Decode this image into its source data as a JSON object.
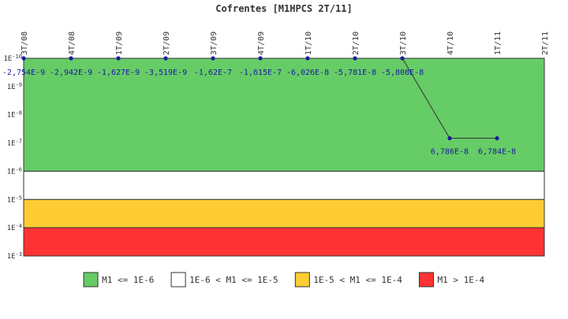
{
  "chart_data": {
    "type": "line",
    "title": "Cofrentes [M1HPCS 2T/11]",
    "categories": [
      "3T/08",
      "4T/08",
      "1T/09",
      "2T/09",
      "3T/09",
      "4T/09",
      "1T/10",
      "2T/10",
      "3T/10",
      "4T/10",
      "1T/11",
      "2T/11"
    ],
    "y_axis": {
      "scale": "log",
      "reversed": true,
      "range": [
        1e-10,
        0.001
      ],
      "ticks": [
        {
          "value": 1e-10,
          "mant": "1E",
          "exp": "-10"
        },
        {
          "value": 1e-09,
          "mant": "1E",
          "exp": "-9"
        },
        {
          "value": 1e-08,
          "mant": "1E",
          "exp": "-8"
        },
        {
          "value": 1e-07,
          "mant": "1E",
          "exp": "-7"
        },
        {
          "value": 1e-06,
          "mant": "1E",
          "exp": "-6"
        },
        {
          "value": 1e-05,
          "mant": "1E",
          "exp": "-5"
        },
        {
          "value": 0.0001,
          "mant": "1E",
          "exp": "-4"
        },
        {
          "value": 0.001,
          "mant": "1E",
          "exp": "-3"
        }
      ]
    },
    "bands": [
      {
        "from": 1e-10,
        "to": 1e-06,
        "color": "#66cc66"
      },
      {
        "from": 1e-06,
        "to": 1e-05,
        "color": "#ffffff"
      },
      {
        "from": 1e-05,
        "to": 0.0001,
        "color": "#ffcc33"
      },
      {
        "from": 0.0001,
        "to": 0.001,
        "color": "#ff3333"
      }
    ],
    "series": [
      {
        "color": "#1a1aa0",
        "points": [
          {
            "x": "3T/08",
            "y": 1e-10,
            "label": "-2,754E-9"
          },
          {
            "x": "4T/08",
            "y": 1e-10,
            "label": "-2,942E-9"
          },
          {
            "x": "1T/09",
            "y": 1e-10,
            "label": "-1,627E-9"
          },
          {
            "x": "2T/09",
            "y": 1e-10,
            "label": "-3,519E-9"
          },
          {
            "x": "3T/09",
            "y": 1e-10,
            "label": "-1,62E-7"
          },
          {
            "x": "4T/09",
            "y": 1e-10,
            "label": "-1,615E-7"
          },
          {
            "x": "1T/10",
            "y": 1e-10,
            "label": "-6,026E-8"
          },
          {
            "x": "2T/10",
            "y": 1e-10,
            "label": "-5,781E-8"
          },
          {
            "x": "3T/10",
            "y": 1e-10,
            "label": "-5,808E-8"
          },
          {
            "x": "4T/10",
            "y": 6.786e-08,
            "label": "6,786E-8"
          },
          {
            "x": "1T/11",
            "y": 6.784e-08,
            "label": "6,784E-8"
          }
        ]
      }
    ],
    "legend": {
      "placement": "bottom",
      "items": [
        {
          "label": "M1 <= 1E-6",
          "color": "#66cc66"
        },
        {
          "label": "1E-6 < M1 <= 1E-5",
          "color": "#ffffff"
        },
        {
          "label": "1E-5 < M1 <= 1E-4",
          "color": "#ffcc33"
        },
        {
          "label": "M1 > 1E-4",
          "color": "#ff3333"
        }
      ]
    }
  }
}
